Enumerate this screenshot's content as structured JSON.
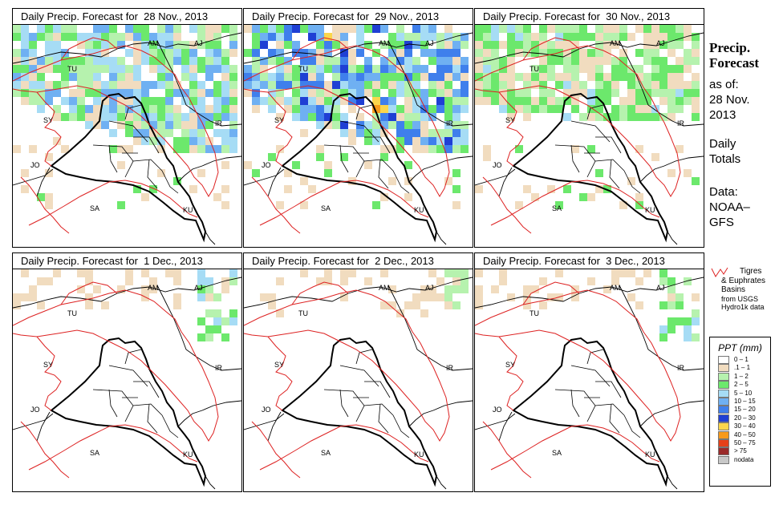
{
  "panels": [
    {
      "title": "Daily Precip. Forecast for  28 Nov., 2013",
      "intensity": 3
    },
    {
      "title": "Daily Precip. Forecast for  29 Nov., 2013",
      "intensity": 4
    },
    {
      "title": "Daily Precip. Forecast for  30 Nov., 2013",
      "intensity": 2
    },
    {
      "title": "Daily Precip. Forecast for  1 Dec., 2013",
      "intensity": 1
    },
    {
      "title": "Daily Precip. Forecast for  2 Dec., 2013",
      "intensity": 0
    },
    {
      "title": "Daily Precip. Forecast for  3 Dec., 2013",
      "intensity": 1
    }
  ],
  "country_labels": [
    "AM",
    "AJ",
    "TU",
    "SY",
    "IR",
    "JO",
    "SA",
    "KU"
  ],
  "side": {
    "title1": "Precip.",
    "title2": "Forecast",
    "asof": "as of:",
    "date1": "28 Nov.",
    "date2": "2013",
    "daily1": "Daily",
    "daily2": "Totals",
    "data1": "Data:",
    "data2": "NOAA–",
    "data3": "GFS"
  },
  "basin_legend": {
    "line1": "Tigres",
    "line2": "& Euphrates",
    "line3": "Basins",
    "line4": "from USGS",
    "line5": "Hydro1k data"
  },
  "legend": {
    "title": "PPT (mm)",
    "items": [
      {
        "label": "0 – 1",
        "color": "#ffffff"
      },
      {
        "label": ".1 – 1",
        "color": "#f1dcbf"
      },
      {
        "label": "1 – 2",
        "color": "#b6f2ae"
      },
      {
        "label": "2 – 5",
        "color": "#6ce86c"
      },
      {
        "label": "5 – 10",
        "color": "#a6dcf5"
      },
      {
        "label": "10 – 15",
        "color": "#6fb0f2"
      },
      {
        "label": "15 – 20",
        "color": "#3f7fec"
      },
      {
        "label": "20 – 30",
        "color": "#1f3fd4"
      },
      {
        "label": "30 – 40",
        "color": "#fbd64c"
      },
      {
        "label": "40 – 50",
        "color": "#f79a1c"
      },
      {
        "label": "50 – 75",
        "color": "#e5401a"
      },
      {
        "label": "> 75",
        "color": "#9a2a2a"
      },
      {
        "label": "nodata",
        "color": "#c8c8c8"
      }
    ]
  }
}
